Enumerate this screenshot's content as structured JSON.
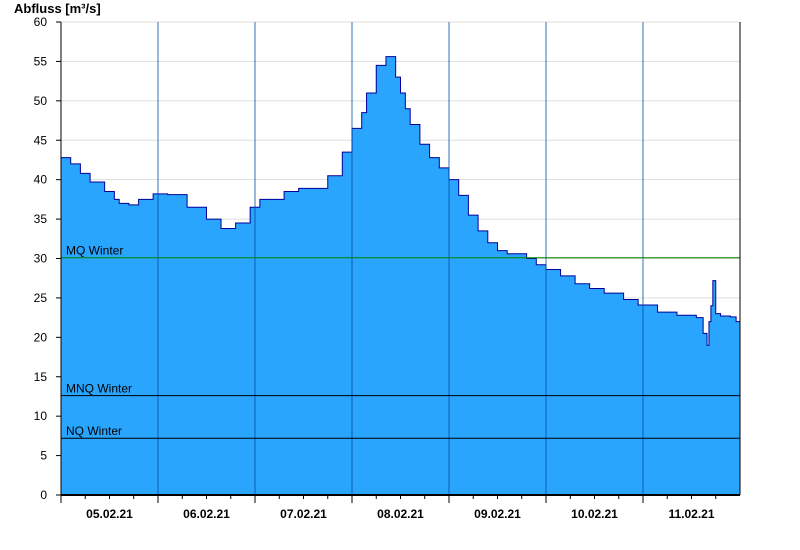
{
  "chart_data": {
    "type": "area",
    "title": "",
    "ylabel": "Abfluss [m³/s]",
    "xlabel": "",
    "ylim": [
      0,
      60
    ],
    "yticks": [
      0,
      5,
      10,
      15,
      20,
      25,
      30,
      35,
      40,
      45,
      50,
      55,
      60
    ],
    "xlim": [
      0,
      7
    ],
    "x_unit": "days since 05.02.21 00:00",
    "day_ticks": [
      0,
      1,
      2,
      3,
      4,
      5,
      6,
      7
    ],
    "xtick_labels": [
      "05.02.21",
      "06.02.21",
      "07.02.21",
      "08.02.21",
      "09.02.21",
      "10.02.21",
      "11.02.21"
    ],
    "grid": true,
    "legend": "none",
    "colors": {
      "fill": "#29a5fe",
      "line": "#000099",
      "mq_line": "#008000",
      "ref_line": "#000000",
      "grid": "#dddddd"
    },
    "reference_lines": [
      {
        "name": "MQ Winter",
        "value": 30.1
      },
      {
        "name": "MNQ Winter",
        "value": 12.6
      },
      {
        "name": "NQ Winter",
        "value": 7.2
      }
    ],
    "series": [
      {
        "name": "Abfluss",
        "x": [
          0,
          0.1,
          0.2,
          0.3,
          0.45,
          0.55,
          0.6,
          0.7,
          0.8,
          0.95,
          1.1,
          1.3,
          1.5,
          1.65,
          1.8,
          1.95,
          2.05,
          2.15,
          2.3,
          2.45,
          2.6,
          2.75,
          2.9,
          3.0,
          3.1,
          3.15,
          3.25,
          3.35,
          3.45,
          3.5,
          3.55,
          3.6,
          3.7,
          3.8,
          3.9,
          4.0,
          4.1,
          4.2,
          4.3,
          4.4,
          4.5,
          4.6,
          4.7,
          4.8,
          4.9,
          5.0,
          5.15,
          5.3,
          5.45,
          5.6,
          5.8,
          5.95,
          6.15,
          6.35,
          6.55,
          6.62,
          6.66,
          6.68,
          6.7,
          6.72,
          6.75,
          6.8,
          6.9,
          6.96,
          7.0
        ],
        "values": [
          42.8,
          42,
          40.8,
          39.7,
          38.5,
          37.5,
          37,
          36.8,
          37.5,
          38.2,
          38.1,
          36.5,
          35,
          33.8,
          34.5,
          36.5,
          37.5,
          37.5,
          38.5,
          38.9,
          38.9,
          40.5,
          43.5,
          46.5,
          48.5,
          51,
          54.5,
          55.6,
          53,
          51,
          49,
          47,
          44.5,
          42.8,
          41.5,
          40,
          38,
          35.5,
          33.5,
          32,
          31,
          30.6,
          30.6,
          30,
          29.2,
          28.6,
          27.8,
          26.8,
          26.2,
          25.6,
          24.8,
          24.1,
          23.2,
          22.8,
          22.5,
          20.5,
          19,
          22,
          24,
          27.2,
          23,
          22.7,
          22.6,
          22,
          22
        ]
      }
    ]
  }
}
